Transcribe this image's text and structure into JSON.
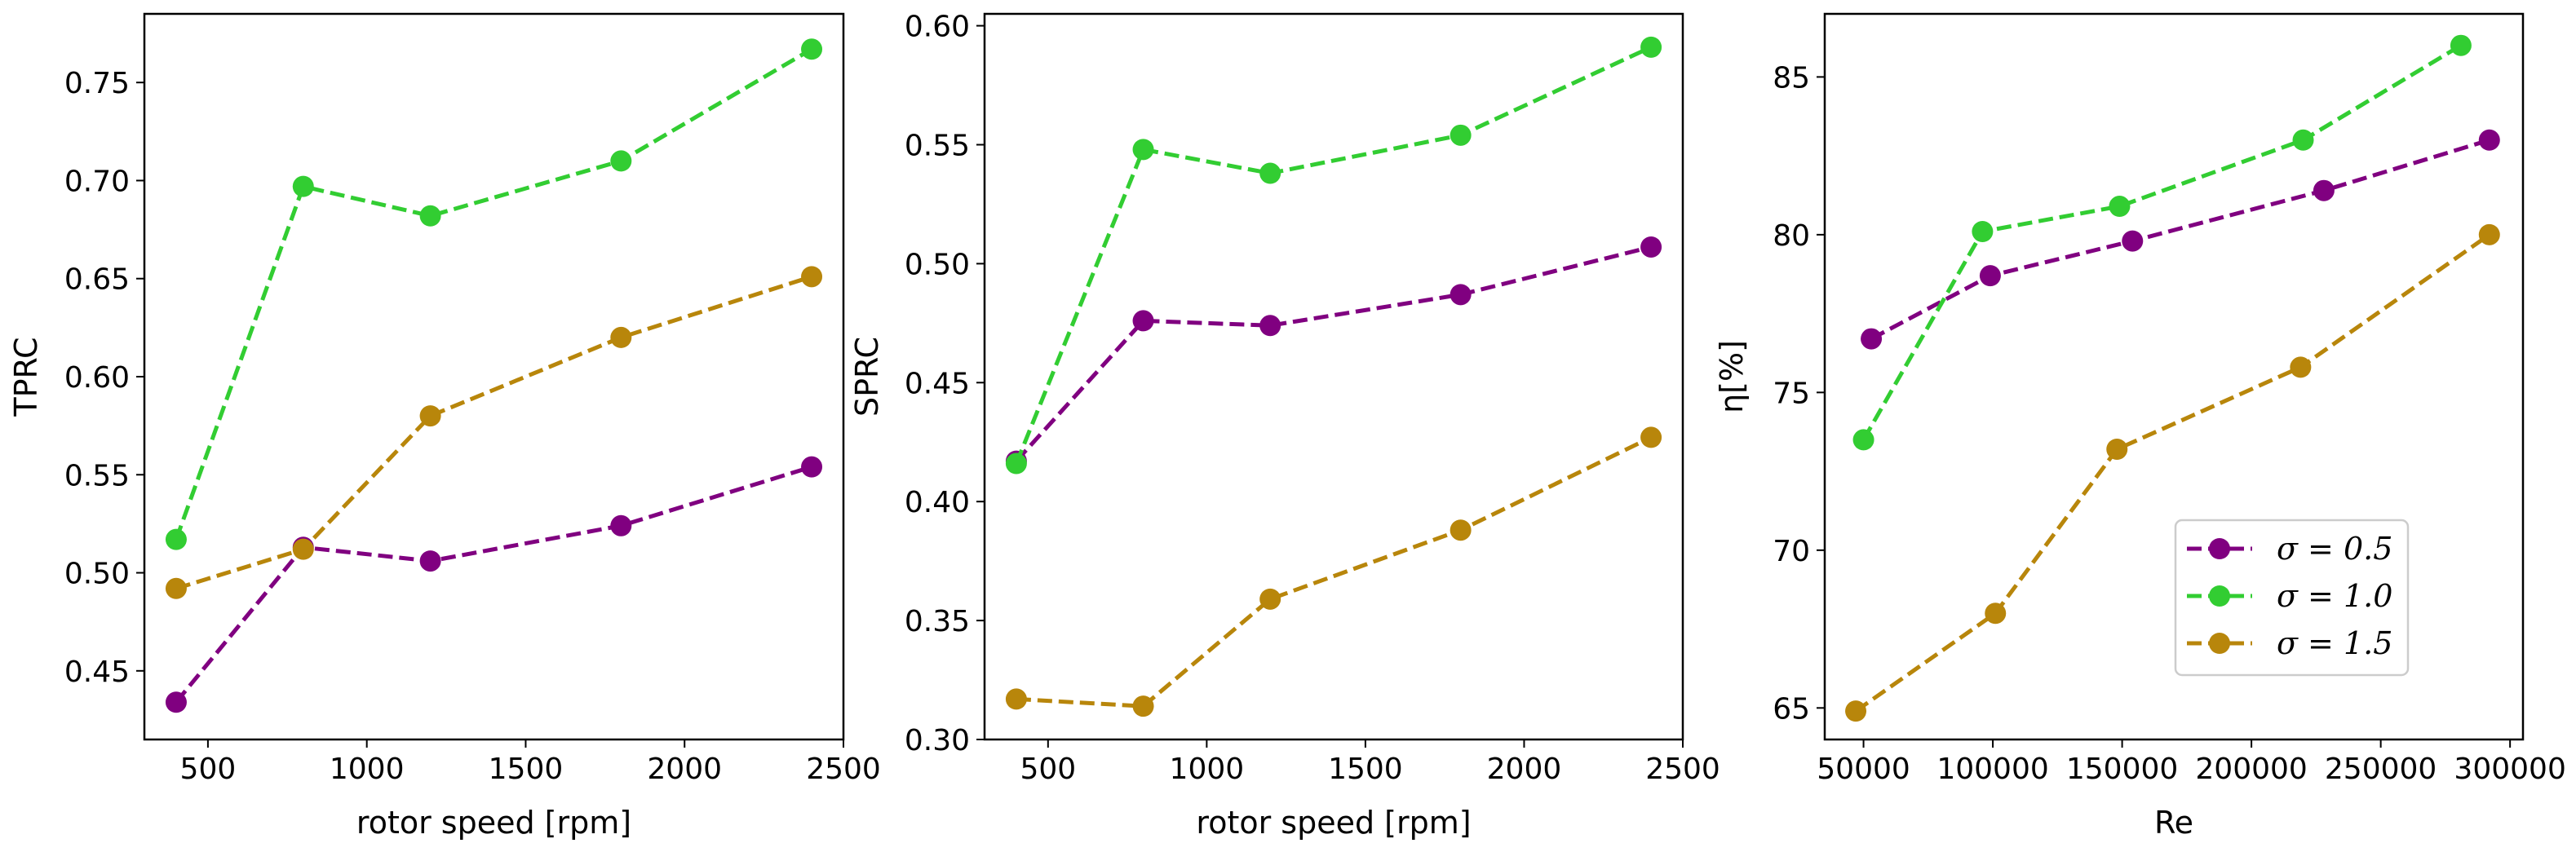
{
  "chart_data": [
    {
      "type": "line",
      "xlabel": "rotor speed [rpm]",
      "ylabel": "TPRC",
      "xlim": [
        300,
        2500
      ],
      "ylim": [
        0.415,
        0.785
      ],
      "xticks": [
        "500",
        "1000",
        "1500",
        "2000",
        "2500"
      ],
      "yticks": [
        "0.45",
        "0.50",
        "0.55",
        "0.60",
        "0.65",
        "0.70",
        "0.75"
      ],
      "series": [
        {
          "name": "σ = 0.5",
          "color": "#800080",
          "x": [
            400,
            800,
            1200,
            1800,
            2400
          ],
          "y": [
            0.434,
            0.513,
            0.506,
            0.524,
            0.554
          ]
        },
        {
          "name": "σ = 1.0",
          "color": "#32cd32",
          "x": [
            400,
            800,
            1200,
            1800,
            2400
          ],
          "y": [
            0.517,
            0.697,
            0.682,
            0.71,
            0.767
          ]
        },
        {
          "name": "σ = 1.5",
          "color": "#b8860b",
          "x": [
            400,
            800,
            1200,
            1800,
            2400
          ],
          "y": [
            0.492,
            0.512,
            0.58,
            0.62,
            0.651
          ]
        }
      ]
    },
    {
      "type": "line",
      "xlabel": "rotor speed [rpm]",
      "ylabel": "SPRC",
      "xlim": [
        300,
        2500
      ],
      "ylim": [
        0.3,
        0.605
      ],
      "xticks": [
        "500",
        "1000",
        "1500",
        "2000",
        "2500"
      ],
      "yticks": [
        "0.30",
        "0.35",
        "0.40",
        "0.45",
        "0.50",
        "0.55",
        "0.60"
      ],
      "series": [
        {
          "name": "σ = 0.5",
          "color": "#800080",
          "x": [
            400,
            800,
            1200,
            1800,
            2400
          ],
          "y": [
            0.417,
            0.476,
            0.474,
            0.487,
            0.507
          ]
        },
        {
          "name": "σ = 1.0",
          "color": "#32cd32",
          "x": [
            400,
            800,
            1200,
            1800,
            2400
          ],
          "y": [
            0.416,
            0.548,
            0.538,
            0.554,
            0.591
          ]
        },
        {
          "name": "σ = 1.5",
          "color": "#b8860b",
          "x": [
            400,
            800,
            1200,
            1800,
            2400
          ],
          "y": [
            0.317,
            0.314,
            0.359,
            0.388,
            0.427
          ]
        }
      ]
    },
    {
      "type": "line",
      "xlabel": "Re",
      "ylabel": "η[%]",
      "xlim": [
        35000,
        305000
      ],
      "ylim": [
        64.0,
        87.0
      ],
      "xticks": [
        "50000",
        "100000",
        "150000",
        "200000",
        "250000",
        "300000"
      ],
      "yticks": [
        "65",
        "70",
        "75",
        "80",
        "85"
      ],
      "legend": {
        "location": "lower-right",
        "entries": [
          "σ = 0.5",
          "σ = 1.0",
          "σ = 1.5"
        ]
      },
      "series": [
        {
          "name": "σ = 0.5",
          "color": "#800080",
          "x": [
            53000,
            99000,
            154000,
            228000,
            292000
          ],
          "y": [
            76.7,
            78.7,
            79.8,
            81.4,
            83.0
          ]
        },
        {
          "name": "σ = 1.0",
          "color": "#32cd32",
          "x": [
            50000,
            96000,
            149000,
            220000,
            281000
          ],
          "y": [
            73.5,
            80.1,
            80.9,
            83.0,
            86.0
          ]
        },
        {
          "name": "σ = 1.5",
          "color": "#b8860b",
          "x": [
            47000,
            101000,
            148000,
            219000,
            292000
          ],
          "y": [
            64.9,
            68.0,
            73.2,
            75.8,
            80.0
          ]
        }
      ]
    }
  ]
}
